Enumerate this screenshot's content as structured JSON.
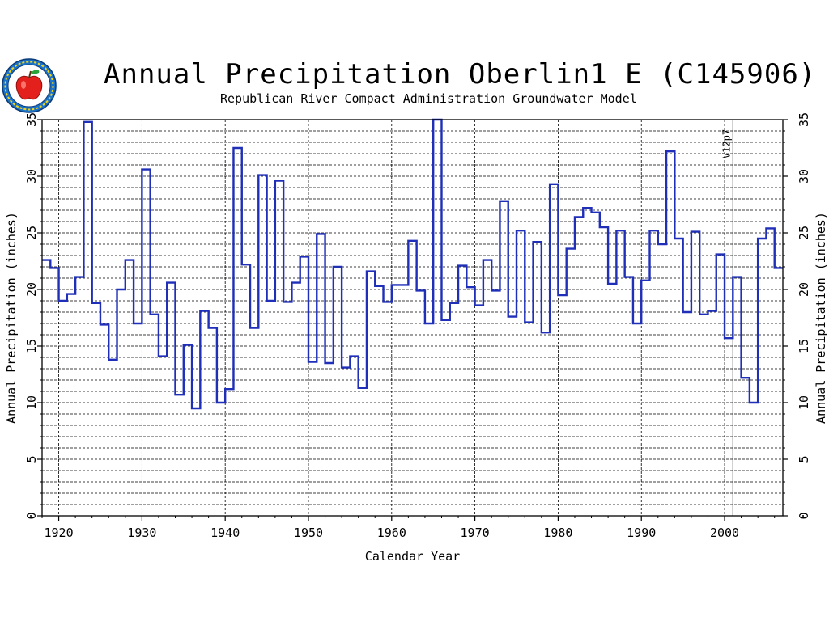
{
  "chart_data": {
    "type": "line",
    "title": "Annual Precipitation Oberlin1 E (C145906)",
    "subtitle": "Republican River Compact Administration Groundwater Model",
    "xlabel": "Calendar Year",
    "ylabel_left": "Annual Precipitation (inches)",
    "ylabel_right": "Annual Precipitation (inches)",
    "xlim": [
      1918,
      2007
    ],
    "ylim": [
      0,
      35
    ],
    "x_ticks": [
      1920,
      1930,
      1940,
      1950,
      1960,
      1970,
      1980,
      1990,
      2000
    ],
    "y_ticks": [
      0,
      5,
      10,
      15,
      20,
      25,
      30,
      35
    ],
    "grid": true,
    "step_style": "steps",
    "annotation": {
      "x": 2001,
      "label": "V12p7"
    },
    "series": [
      {
        "x": [
          1918,
          1919,
          1920,
          1921,
          1922,
          1923,
          1924,
          1925,
          1926,
          1927,
          1928,
          1929,
          1930,
          1931,
          1932,
          1933,
          1934,
          1935,
          1936,
          1937,
          1938,
          1939,
          1940,
          1941,
          1942,
          1943,
          1944,
          1945,
          1946,
          1947,
          1948,
          1949,
          1950,
          1951,
          1952,
          1953,
          1954,
          1955,
          1956,
          1957,
          1958,
          1959,
          1960,
          1961,
          1962,
          1963,
          1964,
          1965,
          1966,
          1967,
          1968,
          1969,
          1970,
          1971,
          1972,
          1973,
          1974,
          1975,
          1976,
          1977,
          1978,
          1979,
          1980,
          1981,
          1982,
          1983,
          1984,
          1985,
          1986,
          1987,
          1988,
          1989,
          1990,
          1991,
          1992,
          1993,
          1994,
          1995,
          1996,
          1997,
          1998,
          1999,
          2000,
          2001,
          2002,
          2003,
          2004,
          2005,
          2006
        ],
        "values": [
          22.6,
          21.9,
          19.0,
          19.6,
          21.1,
          34.8,
          18.8,
          16.9,
          13.8,
          20.0,
          22.6,
          17.0,
          30.6,
          17.8,
          14.1,
          20.6,
          10.7,
          15.1,
          9.5,
          18.1,
          16.6,
          10.0,
          11.2,
          32.5,
          22.2,
          16.6,
          30.1,
          19.0,
          29.6,
          18.9,
          20.6,
          22.9,
          13.6,
          24.9,
          13.5,
          22.0,
          13.1,
          14.1,
          11.3,
          21.6,
          20.3,
          18.9,
          20.4,
          20.4,
          24.3,
          19.9,
          17.0,
          35.0,
          17.3,
          18.8,
          22.1,
          20.2,
          18.6,
          22.6,
          19.9,
          27.8,
          17.6,
          25.2,
          17.1,
          24.2,
          16.2,
          29.3,
          19.5,
          23.6,
          26.4,
          27.2,
          26.8,
          25.5,
          20.5,
          25.2,
          21.1,
          17.0,
          20.8,
          25.2,
          24.0,
          32.2,
          24.5,
          18.0,
          25.1,
          17.8,
          18.1,
          23.1,
          15.7,
          21.1,
          12.2,
          10.0,
          24.5,
          25.4,
          21.9
        ]
      }
    ]
  }
}
